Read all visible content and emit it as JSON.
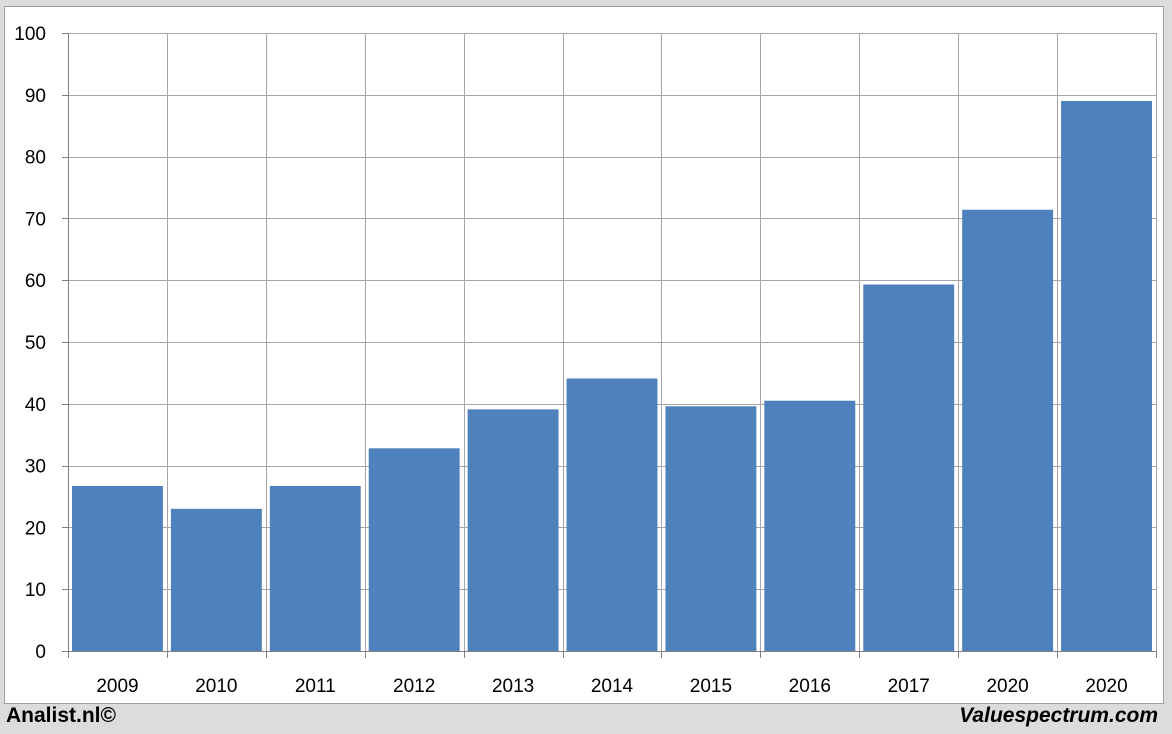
{
  "chart_data": {
    "type": "bar",
    "categories": [
      "2009",
      "2010",
      "2011",
      "2012",
      "2013",
      "2014",
      "2015",
      "2016",
      "2017",
      "2020",
      "2020"
    ],
    "values": [
      26.7,
      23.0,
      26.7,
      32.8,
      39.1,
      44.1,
      39.6,
      40.5,
      59.3,
      71.4,
      89.0
    ],
    "ylim": [
      0,
      100
    ],
    "yticks": [
      0,
      10,
      20,
      30,
      40,
      50,
      60,
      70,
      80,
      90,
      100
    ],
    "grid": true,
    "bar_color": "#4f81bd",
    "grid_color": "#a6a6a6"
  },
  "footer": {
    "left": "Analist.nl©",
    "right": "Valuespectrum.com"
  }
}
